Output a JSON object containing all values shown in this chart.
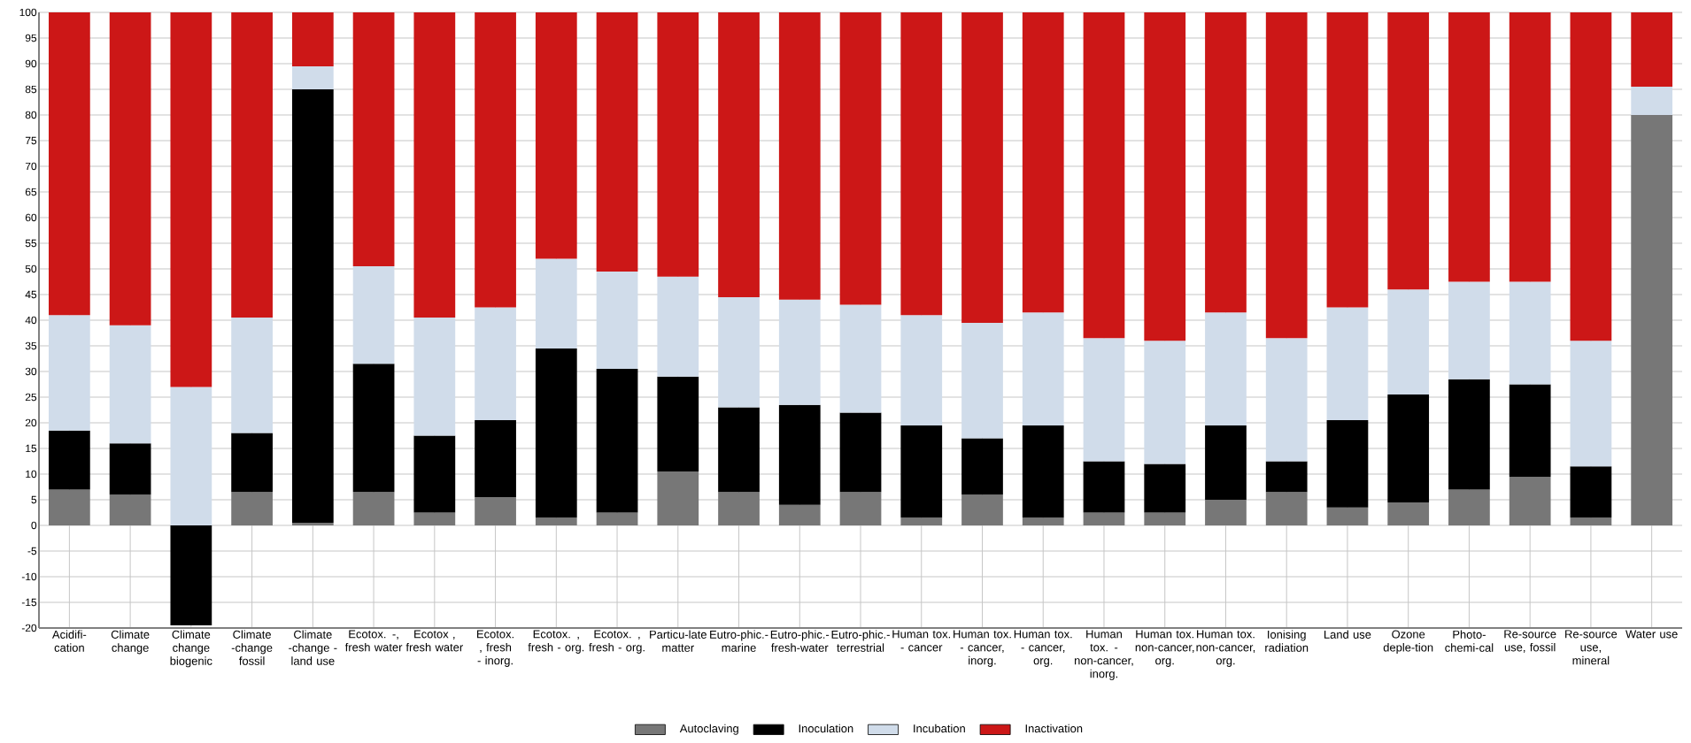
{
  "chart_data": {
    "type": "bar",
    "stacked": true,
    "grid": true,
    "legend": "bottom",
    "categories": [
      "Acidifi-cation",
      "Climate change",
      "Climate change biogenic",
      "Climate -change fossil",
      "Climate -change - land use",
      "Ecotox. -, fresh water",
      "Ecotox , fresh water",
      "Ecotox. , fresh - inorg.",
      "Ecotox. , fresh - org.",
      "Ecotox. , fresh - org.",
      "Particu-late matter",
      "Eutro-phic.- marine",
      "Eutro-phic.- fresh-water",
      "Eutro-phic.- terrestrial",
      "Human tox. - cancer",
      "Human tox. - cancer, inorg.",
      "Human tox. - cancer, org.",
      "Human tox. - non-cancer, inorg.",
      "Human tox. non-cancer, org.",
      "Human tox. non-cancer, org.",
      "Ionising radiation",
      "Land use",
      "Ozone deple-tion",
      "Photo-chemi-cal",
      "Re-source use, fossil",
      "Re-source use, mineral",
      "Water use"
    ],
    "ylim": [
      -20,
      100
    ],
    "yticks": [
      -20,
      -15,
      -10,
      -5,
      0,
      5,
      10,
      15,
      20,
      25,
      30,
      35,
      40,
      45,
      50,
      55,
      60,
      65,
      70,
      75,
      80,
      85,
      90,
      95,
      100
    ],
    "series": [
      {
        "name": "Autoclaving",
        "color": "#777777",
        "values": [
          7,
          6,
          0,
          6.5,
          0.5,
          6.5,
          2.5,
          5.5,
          1.5,
          2.5,
          10.5,
          6.5,
          4,
          6.5,
          1.5,
          6,
          1.5,
          2.5,
          2.5,
          5,
          6.5,
          3.5,
          4.5,
          7,
          9.5,
          1.5,
          80
        ]
      },
      {
        "name": "Inoculation",
        "color": "#000000",
        "values": [
          11.5,
          10,
          -19.5,
          11.5,
          84.5,
          25,
          15,
          15,
          33,
          28,
          18.5,
          16.5,
          19.5,
          15.5,
          18,
          11,
          18,
          10,
          9.5,
          14.5,
          6,
          17,
          21,
          21.5,
          18,
          10,
          0
        ]
      },
      {
        "name": "Incubation",
        "color": "#d0dcea",
        "values": [
          22.5,
          23,
          27,
          22.5,
          4.5,
          19,
          23,
          22,
          17.5,
          19,
          19.5,
          21.5,
          20.5,
          21,
          21.5,
          22.5,
          22,
          24,
          24,
          22,
          24,
          22,
          20.5,
          19,
          20,
          24.5,
          5.5
        ]
      },
      {
        "name": "Inactivation",
        "color": "#cc1717",
        "values": [
          59,
          61,
          73,
          59.5,
          10.5,
          49.5,
          59.5,
          57.5,
          48,
          50.5,
          51.5,
          55.5,
          56,
          57,
          59,
          60.5,
          58.5,
          63.5,
          64,
          58.5,
          63.5,
          57.5,
          54,
          52.5,
          52.5,
          64,
          14.5
        ]
      }
    ]
  }
}
